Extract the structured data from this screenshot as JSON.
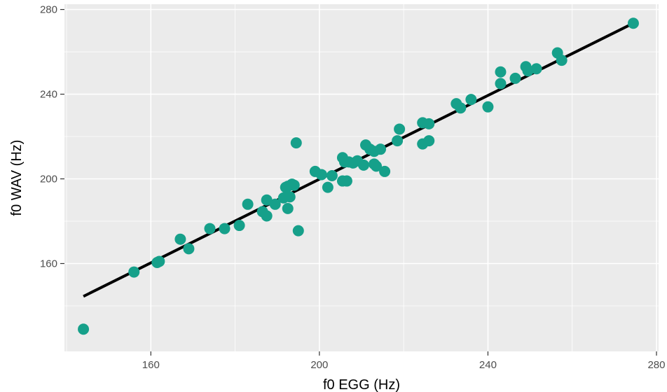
{
  "chart_data": {
    "type": "scatter",
    "title": "",
    "xlabel": "f0 EGG (Hz)",
    "ylabel": "f0 WAV (Hz)",
    "xlim": [
      139.5,
      280.5
    ],
    "ylim": [
      118.5,
      282.5
    ],
    "x_ticks": [
      160,
      200,
      240,
      280
    ],
    "y_ticks": [
      160,
      200,
      240,
      280
    ],
    "grid": true,
    "colors": {
      "panel": "#ebebeb",
      "grid": "#ffffff",
      "points": "#16a08a",
      "line": "#000000",
      "tick_text": "#4d4d4d"
    },
    "series": [
      {
        "kind": "points",
        "x": [
          144,
          156,
          161.5,
          162,
          167,
          169,
          174,
          177.5,
          181,
          183,
          186.5,
          187.5,
          187.5,
          189.5,
          191.5,
          192,
          192.5,
          192.5,
          193,
          193.5,
          194,
          194.5,
          195,
          199,
          200.5,
          202,
          203,
          205.5,
          205.5,
          206,
          206.5,
          207,
          208,
          209,
          210.5,
          211,
          212,
          213,
          213,
          213.5,
          214.5,
          215.5,
          218.5,
          219,
          224.5,
          224.5,
          226,
          226,
          232.5,
          233.5,
          236,
          240,
          243,
          243,
          246.5,
          249,
          249.5,
          251.5,
          256.5,
          257.5,
          274.5
        ],
        "y": [
          129,
          156,
          160.5,
          161,
          171.5,
          167,
          176.5,
          176.5,
          178,
          188,
          184.5,
          182.5,
          190,
          188,
          191,
          196,
          186,
          196.5,
          191.5,
          197.5,
          197,
          217,
          175.5,
          203.5,
          202,
          196,
          201.5,
          199,
          210,
          208,
          199,
          208,
          207.5,
          208.5,
          206.5,
          216,
          214,
          213,
          207,
          206,
          214,
          203.5,
          218,
          223.5,
          216.5,
          226.5,
          218,
          226,
          235.5,
          233.5,
          237.5,
          234,
          245,
          250.5,
          247.5,
          253,
          251,
          252,
          259.5,
          256,
          273.5
        ]
      },
      {
        "kind": "fit-line",
        "x": [
          144,
          274.5
        ],
        "y": [
          144.5,
          273.5
        ]
      }
    ]
  }
}
